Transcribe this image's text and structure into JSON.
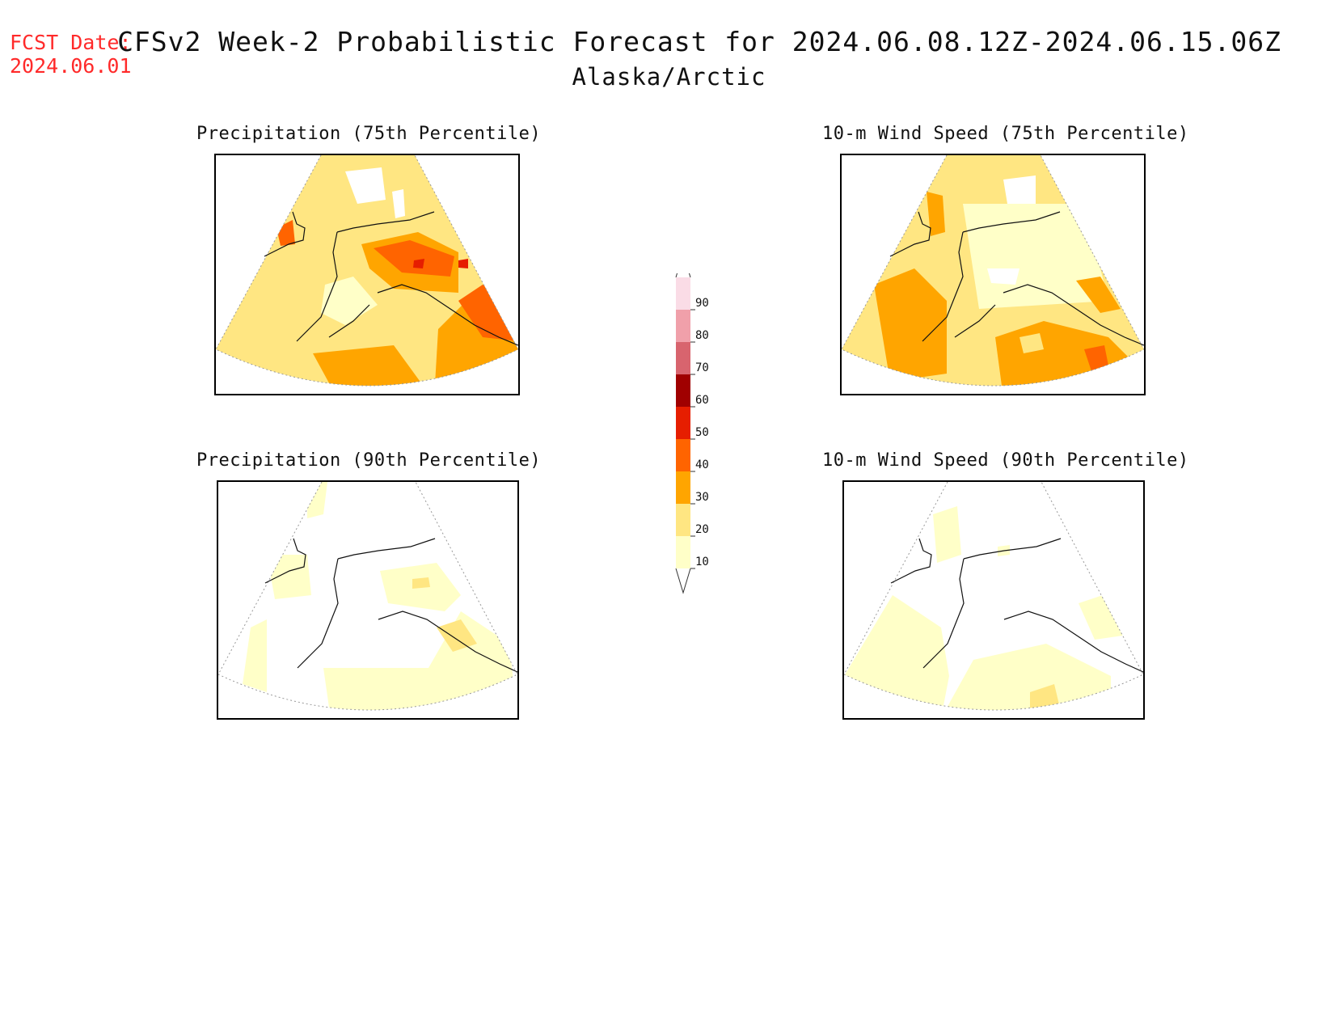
{
  "header": {
    "fcst_label": "FCST Date:",
    "fcst_date": "2024.06.01",
    "title": "CFSv2 Week-2 Probabilistic Forecast for 2024.06.08.12Z-2024.06.15.06Z",
    "subtitle": "Alaska/Arctic"
  },
  "panels": [
    {
      "id": "precip75",
      "title": "Precipitation (75th Percentile)"
    },
    {
      "id": "wind75",
      "title": "10-m Wind Speed (75th Percentile)"
    },
    {
      "id": "precip90",
      "title": "Precipitation (90th Percentile)"
    },
    {
      "id": "wind90",
      "title": "10-m Wind Speed (90th Percentile)"
    }
  ],
  "colorbar": {
    "levels": [
      "10",
      "20",
      "30",
      "40",
      "50",
      "60",
      "70",
      "80",
      "90"
    ],
    "colors": [
      "#ffffc8",
      "#ffe682",
      "#ffa500",
      "#ff6400",
      "#e61e00",
      "#a00000",
      "#d8646e",
      "#f0a0aa",
      "#fadce6"
    ]
  }
}
